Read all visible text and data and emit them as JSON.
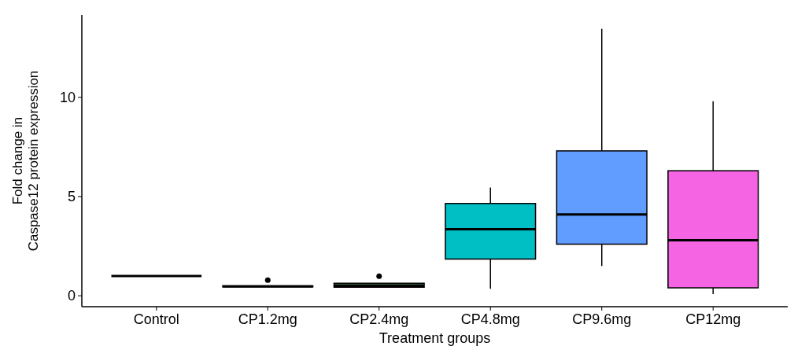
{
  "chart_data": {
    "type": "box",
    "xlabel": "Treatment groups",
    "ylabel": "Fold change in\nCaspase12 protein expression",
    "categories": [
      "Control",
      "CP1.2mg",
      "CP2.4mg",
      "CP4.8mg",
      "CP9.6mg",
      "CP12mg"
    ],
    "colors": [
      null,
      null,
      "#2e5e3a",
      "#00bfc4",
      "#619cff",
      "#f564e3"
    ],
    "boxes": [
      {
        "low": 1,
        "q1": 1,
        "median": 1,
        "q3": 1,
        "high": 1
      },
      {
        "low": 0.45,
        "q1": 0.45,
        "median": 0.47,
        "q3": 0.5,
        "high": 0.5,
        "outliers": [
          0.79
        ]
      },
      {
        "low": 0.43,
        "q1": 0.43,
        "median": 0.5,
        "q3": 0.63,
        "high": 0.63,
        "outliers": [
          0.99
        ]
      },
      {
        "low": 0.35,
        "q1": 1.85,
        "median": 3.35,
        "q3": 4.65,
        "high": 5.45
      },
      {
        "low": 1.5,
        "q1": 2.6,
        "median": 4.1,
        "q3": 7.3,
        "high": 13.45
      },
      {
        "low": 0.08,
        "q1": 0.4,
        "median": 2.8,
        "q3": 6.3,
        "high": 9.8
      }
    ],
    "ylim": [
      -0.55,
      14.15
    ],
    "yticks": [
      0,
      5,
      10
    ],
    "grid": false
  }
}
